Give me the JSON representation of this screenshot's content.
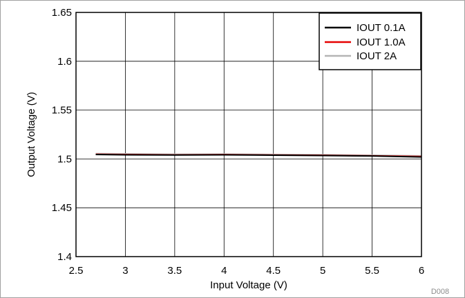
{
  "chart_data": {
    "type": "line",
    "xlabel": "Input Voltage (V)",
    "ylabel": "Output Voltage (V)",
    "xlim": [
      2.5,
      6
    ],
    "ylim": [
      1.4,
      1.65
    ],
    "x_ticks": [
      2.5,
      3,
      3.5,
      4,
      4.5,
      5,
      5.5,
      6
    ],
    "y_ticks": [
      1.4,
      1.45,
      1.5,
      1.55,
      1.6,
      1.65
    ],
    "x_tick_labels": [
      "2.5",
      "3",
      "3.5",
      "4",
      "4.5",
      "5",
      "5.5",
      "6"
    ],
    "y_tick_labels": [
      "1.4",
      "1.45",
      "1.5",
      "1.55",
      "1.6",
      "1.65"
    ],
    "grid": true,
    "legend_position": "top-right",
    "series": [
      {
        "name": "IOUT 0.1A",
        "color": "#000000",
        "points": [
          [
            2.7,
            1.5045
          ],
          [
            3.0,
            1.5042
          ],
          [
            3.5,
            1.504
          ],
          [
            4.0,
            1.5042
          ],
          [
            4.5,
            1.5038
          ],
          [
            5.0,
            1.5035
          ],
          [
            5.5,
            1.503
          ],
          [
            6.0,
            1.502
          ]
        ]
      },
      {
        "name": "IOUT 1.0A",
        "color": "#e60000",
        "points": [
          [
            2.7,
            1.5048
          ],
          [
            3.0,
            1.5045
          ],
          [
            3.5,
            1.5042
          ],
          [
            4.0,
            1.5044
          ],
          [
            4.5,
            1.504
          ],
          [
            5.0,
            1.5037
          ],
          [
            5.5,
            1.5032
          ],
          [
            6.0,
            1.5025
          ]
        ]
      },
      {
        "name": "IOUT 2A",
        "color": "#b4b4b4",
        "points": [
          [
            2.7,
            1.5055
          ],
          [
            3.0,
            1.5052
          ],
          [
            3.5,
            1.5048
          ],
          [
            4.0,
            1.505
          ],
          [
            4.5,
            1.5046
          ],
          [
            5.0,
            1.5043
          ],
          [
            5.5,
            1.5038
          ],
          [
            6.0,
            1.5032
          ]
        ]
      }
    ]
  },
  "figure_code": "D008"
}
